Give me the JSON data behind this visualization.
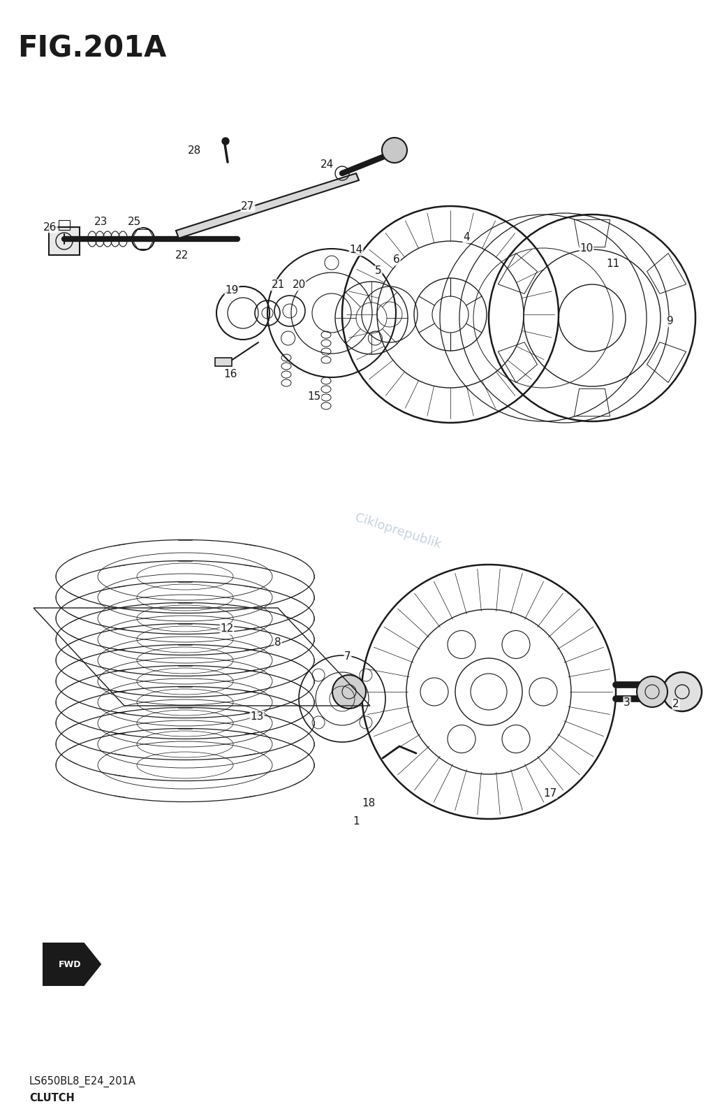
{
  "title": "FIG.201A",
  "subtitle1": "LS650BL8_E24_201A",
  "subtitle2": "CLUTCH",
  "bg_color": "#ffffff",
  "line_color": "#1a1a1a",
  "watermark_text": "Cikloprepublik",
  "watermark_color": "#aabbcc",
  "title_fontsize": 30,
  "label_fontsize": 11,
  "subtitle_fontsize": 10.5
}
